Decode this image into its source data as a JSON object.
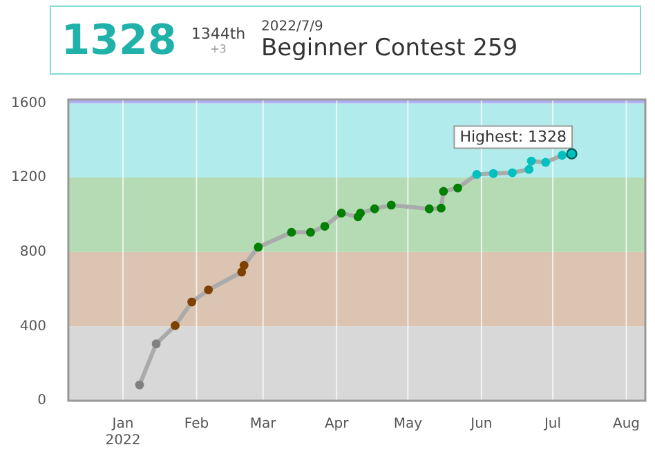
{
  "chart_data": {
    "type": "line",
    "annotations": [
      "1328",
      "1344th",
      "+3",
      "2022/7/9",
      "Beginner Contest 259",
      {
        "text": "Highest: 1328",
        "x": "2022-07-09",
        "y": 1328
      }
    ],
    "x": [
      "2022-01-08",
      "2022-01-15",
      "2022-01-23",
      "2022-01-30",
      "2022-02-06",
      "2022-02-20",
      "2022-02-21",
      "2022-02-27",
      "2022-03-13",
      "2022-03-21",
      "2022-03-27",
      "2022-04-03",
      "2022-04-10",
      "2022-04-11",
      "2022-04-17",
      "2022-04-24",
      "2022-05-10",
      "2022-05-15",
      "2022-05-16",
      "2022-05-22",
      "2022-05-30",
      "2022-06-06",
      "2022-06-14",
      "2022-06-21",
      "2022-06-22",
      "2022-06-28",
      "2022-07-05",
      "2022-07-09"
    ],
    "series": [
      {
        "color": "#aaaaaa",
        "values": [
          85,
          306,
          404,
          531,
          596,
          692,
          728,
          826,
          906,
          906,
          938,
          1009,
          989,
          1009,
          1032,
          1052,
          1032,
          1036,
          1126,
          1144,
          1217,
          1222,
          1226,
          1244,
          1289,
          1282,
          1320,
          1328
        ],
        "colors": [
          "#808080",
          "#808080",
          "#804000",
          "#804000",
          "#804000",
          "#804000",
          "#804000",
          "#008000",
          "#008000",
          "#008000",
          "#008000",
          "#008000",
          "#008000",
          "#008000",
          "#008000",
          "#008000",
          "#008000",
          "#008000",
          "#008000",
          "#008000",
          "#00c0c0",
          "#00c0c0",
          "#00c0c0",
          "#00c0c0",
          "#00c0c0",
          "#00c0c0",
          "#00c0c0",
          "#00c0c0"
        ]
      }
    ],
    "xlim": [
      "2021-12-09",
      "2022-08-09"
    ],
    "xticks": [
      {
        "value": "2022-01-01",
        "label": "Jan 2022"
      },
      {
        "value": "2022-02-01",
        "label": "Feb"
      },
      {
        "value": "2022-03-01",
        "label": "Mar"
      },
      {
        "value": "2022-04-01",
        "label": "Apr"
      },
      {
        "value": "2022-05-01",
        "label": "May"
      },
      {
        "value": "2022-06-01",
        "label": "Jun"
      },
      {
        "value": "2022-07-01",
        "label": "Jul"
      },
      {
        "value": "2022-08-01",
        "label": "Aug"
      }
    ],
    "ylim": [
      0,
      1620
    ],
    "yticks": [
      0,
      400,
      800,
      1200,
      1600
    ],
    "bands": [
      {
        "axis": "y",
        "from": 0,
        "to": 400,
        "color": "#d8d8d8"
      },
      {
        "axis": "y",
        "from": 400,
        "to": 800,
        "color": "#dbc4b2"
      },
      {
        "axis": "y",
        "from": 800,
        "to": 1200,
        "color": "#b5dbb5"
      },
      {
        "axis": "y",
        "from": 1200,
        "to": 1600,
        "color": "#b2ebeb"
      },
      {
        "axis": "y",
        "from": 1600,
        "to": 1620,
        "color": "#b0b0f0"
      }
    ],
    "grid": "x",
    "marker": "circle",
    "line_style": "solid",
    "legend": false
  }
}
